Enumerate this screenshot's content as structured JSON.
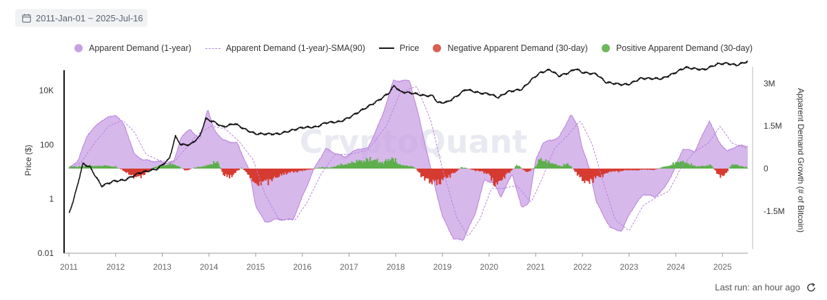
{
  "date_range": "2011-Jan-01 ~ 2025-Jul-16",
  "footer": {
    "last_run": "Last run: an hour ago"
  },
  "icons": {
    "calendar": "calendar-icon",
    "refresh": "refresh-icon"
  },
  "colors": {
    "apparent_demand": "#c9a0e4",
    "apparent_demand_line": "#b77fdc",
    "sma": "#b77fdc",
    "price": "#111111",
    "negative": "#d63b30",
    "positive": "#5daf4c"
  },
  "watermark": "CryptoQuant",
  "chart_data": {
    "type": "line",
    "title": "",
    "legend_position": "top",
    "grid": false,
    "legend": [
      {
        "key": "apparent_demand",
        "label": "Apparent Demand (1-year)",
        "marker": "dot",
        "color": "#c9a0e4"
      },
      {
        "key": "sma",
        "label": "Apparent Demand (1-year)-SMA(90)",
        "marker": "dashed-line",
        "color": "#b77fdc"
      },
      {
        "key": "price",
        "label": "Price",
        "marker": "line",
        "color": "#111111"
      },
      {
        "key": "negative",
        "label": "Negative Apparent Demand (30-day)",
        "marker": "dot",
        "color": "#d63b30"
      },
      {
        "key": "positive",
        "label": "Positive Apparent Demand (30-day)",
        "marker": "dot",
        "color": "#5daf4c"
      }
    ],
    "x_axis": {
      "ticks": [
        "2011",
        "2012",
        "2013",
        "2014",
        "2015",
        "2016",
        "2017",
        "2018",
        "2019",
        "2020",
        "2021",
        "2022",
        "2023",
        "2024",
        "2025"
      ],
      "range": [
        2011.0,
        2025.54
      ]
    },
    "y_left": {
      "label": "Price ($)",
      "scale": "log",
      "ticks": [
        {
          "value": 0.01,
          "label": "0.01"
        },
        {
          "value": 1,
          "label": "1"
        },
        {
          "value": 100,
          "label": "100"
        },
        {
          "value": 10000,
          "label": "10K"
        }
      ],
      "range": [
        0.01,
        100000
      ]
    },
    "y_right": {
      "label": "Apparent Demand Growth (# of Bitcoin)",
      "scale": "linear",
      "ticks": [
        {
          "value": 3000000,
          "label": "3M"
        },
        {
          "value": 1500000,
          "label": "1.5M"
        },
        {
          "value": 0,
          "label": "0"
        },
        {
          "value": -1500000,
          "label": "-1.5M"
        }
      ],
      "range": [
        -2600000,
        3500000
      ]
    },
    "series": {
      "price": [
        [
          2011.0,
          0.3
        ],
        [
          2011.1,
          0.9
        ],
        [
          2011.3,
          20
        ],
        [
          2011.45,
          15
        ],
        [
          2011.7,
          3
        ],
        [
          2011.95,
          4.5
        ],
        [
          2012.2,
          5
        ],
        [
          2012.5,
          9
        ],
        [
          2012.9,
          13
        ],
        [
          2013.15,
          30
        ],
        [
          2013.28,
          200
        ],
        [
          2013.4,
          100
        ],
        [
          2013.6,
          100
        ],
        [
          2013.8,
          200
        ],
        [
          2013.93,
          900
        ],
        [
          2014.1,
          700
        ],
        [
          2014.3,
          450
        ],
        [
          2014.55,
          600
        ],
        [
          2014.8,
          350
        ],
        [
          2015.0,
          250
        ],
        [
          2015.2,
          250
        ],
        [
          2015.5,
          250
        ],
        [
          2015.8,
          350
        ],
        [
          2016.0,
          430
        ],
        [
          2016.3,
          450
        ],
        [
          2016.5,
          650
        ],
        [
          2016.8,
          700
        ],
        [
          2017.0,
          1000
        ],
        [
          2017.4,
          2500
        ],
        [
          2017.65,
          4500
        ],
        [
          2017.85,
          8000
        ],
        [
          2017.97,
          15000
        ],
        [
          2018.1,
          9000
        ],
        [
          2018.35,
          8000
        ],
        [
          2018.6,
          6500
        ],
        [
          2018.8,
          6300
        ],
        [
          2018.9,
          3500
        ],
        [
          2019.1,
          3700
        ],
        [
          2019.3,
          6000
        ],
        [
          2019.5,
          11000
        ],
        [
          2019.8,
          8000
        ],
        [
          2020.0,
          7500
        ],
        [
          2020.2,
          5500
        ],
        [
          2020.4,
          9000
        ],
        [
          2020.7,
          11000
        ],
        [
          2020.95,
          29000
        ],
        [
          2021.1,
          45000
        ],
        [
          2021.3,
          58000
        ],
        [
          2021.5,
          34000
        ],
        [
          2021.7,
          45000
        ],
        [
          2021.85,
          63000
        ],
        [
          2022.0,
          46000
        ],
        [
          2022.3,
          40000
        ],
        [
          2022.5,
          20000
        ],
        [
          2022.85,
          16500
        ],
        [
          2023.0,
          17000
        ],
        [
          2023.25,
          28000
        ],
        [
          2023.7,
          27000
        ],
        [
          2023.95,
          42000
        ],
        [
          2024.2,
          70000
        ],
        [
          2024.6,
          58000
        ],
        [
          2024.9,
          95000
        ],
        [
          2025.1,
          100000
        ],
        [
          2025.3,
          85000
        ],
        [
          2025.54,
          118000
        ]
      ],
      "apparent_demand": [
        [
          2011.0,
          0
        ],
        [
          2011.2,
          300000
        ],
        [
          2011.4,
          1200000
        ],
        [
          2011.7,
          1700000
        ],
        [
          2012.0,
          1900000
        ],
        [
          2012.2,
          1500000
        ],
        [
          2012.4,
          500000
        ],
        [
          2012.6,
          300000
        ],
        [
          2012.9,
          250000
        ],
        [
          2013.1,
          200000
        ],
        [
          2013.25,
          250000
        ],
        [
          2013.4,
          1100000
        ],
        [
          2013.6,
          1400000
        ],
        [
          2013.8,
          1000000
        ],
        [
          2013.97,
          2100000
        ],
        [
          2014.1,
          1400000
        ],
        [
          2014.3,
          1000000
        ],
        [
          2014.6,
          900000
        ],
        [
          2014.85,
          0
        ],
        [
          2015.0,
          -1300000
        ],
        [
          2015.2,
          -1900000
        ],
        [
          2015.4,
          -1800000
        ],
        [
          2015.8,
          -1800000
        ],
        [
          2016.0,
          -1000000
        ],
        [
          2016.25,
          0
        ],
        [
          2016.5,
          700000
        ],
        [
          2016.9,
          400000
        ],
        [
          2017.2,
          700000
        ],
        [
          2017.4,
          700000
        ],
        [
          2017.7,
          1800000
        ],
        [
          2017.95,
          3100000
        ],
        [
          2018.3,
          3100000
        ],
        [
          2018.5,
          1800000
        ],
        [
          2018.75,
          0
        ],
        [
          2019.0,
          -1700000
        ],
        [
          2019.25,
          -2500000
        ],
        [
          2019.45,
          -2500000
        ],
        [
          2019.7,
          -1600000
        ],
        [
          2019.9,
          -400000
        ],
        [
          2020.1,
          -500000
        ],
        [
          2020.25,
          -1000000
        ],
        [
          2020.4,
          -500000
        ],
        [
          2020.5,
          -200000
        ],
        [
          2020.7,
          -1400000
        ],
        [
          2020.85,
          -1200000
        ],
        [
          2021.0,
          300000
        ],
        [
          2021.15,
          900000
        ],
        [
          2021.5,
          1100000
        ],
        [
          2021.75,
          1900000
        ],
        [
          2021.9,
          1500000
        ],
        [
          2022.0,
          700000
        ],
        [
          2022.15,
          0
        ],
        [
          2022.3,
          -1200000
        ],
        [
          2022.6,
          -2100000
        ],
        [
          2022.85,
          -2200000
        ],
        [
          2023.0,
          -1600000
        ],
        [
          2023.3,
          -900000
        ],
        [
          2023.55,
          -1000000
        ],
        [
          2023.75,
          -700000
        ],
        [
          2023.95,
          -100000
        ],
        [
          2024.15,
          700000
        ],
        [
          2024.4,
          600000
        ],
        [
          2024.55,
          1100000
        ],
        [
          2024.72,
          1700000
        ],
        [
          2024.9,
          1000000
        ],
        [
          2025.1,
          600000
        ],
        [
          2025.3,
          800000
        ],
        [
          2025.54,
          800000
        ]
      ],
      "sma": [
        [
          2011.0,
          0
        ],
        [
          2011.25,
          200000
        ],
        [
          2011.55,
          900000
        ],
        [
          2011.85,
          1500000
        ],
        [
          2012.15,
          1700000
        ],
        [
          2012.4,
          1300000
        ],
        [
          2012.65,
          500000
        ],
        [
          2012.95,
          280000
        ],
        [
          2013.25,
          230000
        ],
        [
          2013.5,
          700000
        ],
        [
          2013.75,
          1200000
        ],
        [
          2014.05,
          1500000
        ],
        [
          2014.35,
          1400000
        ],
        [
          2014.65,
          950000
        ],
        [
          2014.95,
          300000
        ],
        [
          2015.2,
          -900000
        ],
        [
          2015.5,
          -1800000
        ],
        [
          2015.85,
          -1800000
        ],
        [
          2016.1,
          -1200000
        ],
        [
          2016.4,
          -200000
        ],
        [
          2016.7,
          500000
        ],
        [
          2017.0,
          500000
        ],
        [
          2017.4,
          650000
        ],
        [
          2017.8,
          1500000
        ],
        [
          2018.1,
          2700000
        ],
        [
          2018.45,
          2900000
        ],
        [
          2018.75,
          1700000
        ],
        [
          2019.0,
          0
        ],
        [
          2019.3,
          -1700000
        ],
        [
          2019.55,
          -2400000
        ],
        [
          2019.8,
          -1800000
        ],
        [
          2020.05,
          -700000
        ],
        [
          2020.3,
          -700000
        ],
        [
          2020.6,
          -600000
        ],
        [
          2020.9,
          -1200000
        ],
        [
          2021.15,
          -300000
        ],
        [
          2021.4,
          700000
        ],
        [
          2021.7,
          1200000
        ],
        [
          2021.95,
          1700000
        ],
        [
          2022.2,
          900000
        ],
        [
          2022.45,
          -500000
        ],
        [
          2022.7,
          -1800000
        ],
        [
          2023.0,
          -2200000
        ],
        [
          2023.3,
          -1300000
        ],
        [
          2023.6,
          -1000000
        ],
        [
          2023.85,
          -800000
        ],
        [
          2024.1,
          0
        ],
        [
          2024.4,
          600000
        ],
        [
          2024.7,
          900000
        ],
        [
          2024.95,
          1500000
        ],
        [
          2025.2,
          900000
        ],
        [
          2025.54,
          700000
        ]
      ],
      "apparent_demand_30d": [
        [
          2011.0,
          80000
        ],
        [
          2011.5,
          150000
        ],
        [
          2012.0,
          110000
        ],
        [
          2012.25,
          -230000
        ],
        [
          2012.5,
          -480000
        ],
        [
          2012.8,
          60000
        ],
        [
          2013.2,
          250000
        ],
        [
          2013.5,
          -80000
        ],
        [
          2013.9,
          130000
        ],
        [
          2014.2,
          320000
        ],
        [
          2014.3,
          -250000
        ],
        [
          2014.45,
          -450000
        ],
        [
          2014.7,
          70000
        ],
        [
          2015.0,
          -750000
        ],
        [
          2015.3,
          -600000
        ],
        [
          2015.5,
          -350000
        ],
        [
          2015.8,
          -150000
        ],
        [
          2016.0,
          -120000
        ],
        [
          2016.3,
          30000
        ],
        [
          2016.6,
          60000
        ],
        [
          2016.9,
          210000
        ],
        [
          2017.2,
          360000
        ],
        [
          2017.5,
          480000
        ],
        [
          2017.7,
          280000
        ],
        [
          2017.9,
          520000
        ],
        [
          2018.1,
          200000
        ],
        [
          2018.4,
          60000
        ],
        [
          2018.6,
          -450000
        ],
        [
          2018.75,
          -680000
        ],
        [
          2018.95,
          -650000
        ],
        [
          2019.2,
          -300000
        ],
        [
          2019.4,
          60000
        ],
        [
          2019.8,
          -120000
        ],
        [
          2020.0,
          -300000
        ],
        [
          2020.15,
          -850000
        ],
        [
          2020.35,
          -350000
        ],
        [
          2020.6,
          180000
        ],
        [
          2020.8,
          -180000
        ],
        [
          2021.0,
          80000
        ],
        [
          2021.1,
          520000
        ],
        [
          2021.3,
          300000
        ],
        [
          2021.5,
          120000
        ],
        [
          2021.7,
          250000
        ],
        [
          2021.95,
          -450000
        ],
        [
          2022.1,
          -700000
        ],
        [
          2022.3,
          -450000
        ],
        [
          2022.6,
          -150000
        ],
        [
          2022.9,
          -100000
        ],
        [
          2023.2,
          -60000
        ],
        [
          2023.5,
          -60000
        ],
        [
          2023.8,
          100000
        ],
        [
          2024.05,
          350000
        ],
        [
          2024.2,
          300000
        ],
        [
          2024.5,
          80000
        ],
        [
          2024.75,
          200000
        ],
        [
          2024.9,
          -280000
        ],
        [
          2025.0,
          -450000
        ],
        [
          2025.2,
          200000
        ],
        [
          2025.4,
          130000
        ],
        [
          2025.54,
          60000
        ]
      ]
    }
  }
}
